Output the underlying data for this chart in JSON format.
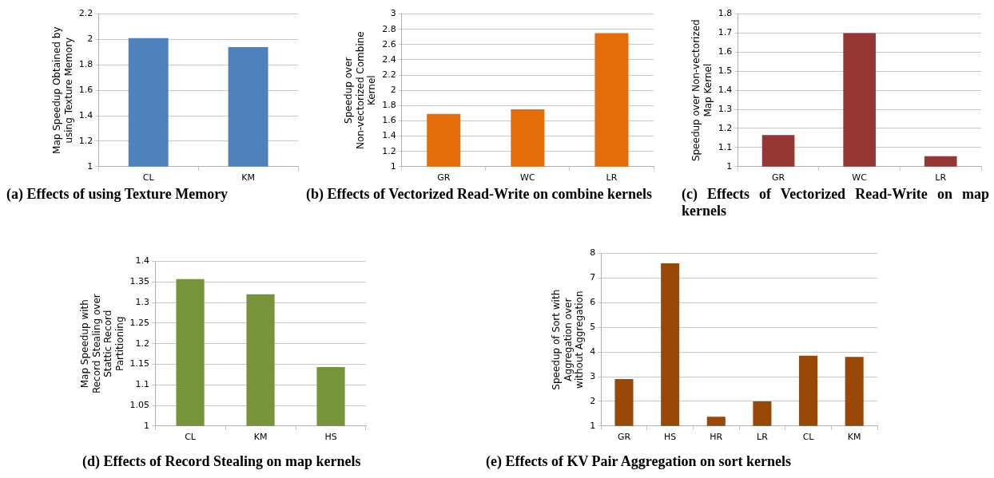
{
  "chart_data": [
    {
      "type": "bar",
      "title": "(a) Effects of using Texture Memory",
      "ylabel": "Map Speedup Obtained by using Texture Memory",
      "categories": [
        "CL",
        "KM"
      ],
      "values": [
        2.01,
        1.94
      ],
      "color": "#4f81bd",
      "ylim": [
        1,
        2.2
      ],
      "yticks": [
        1,
        1.2,
        1.4,
        1.6,
        1.8,
        2,
        2.2
      ],
      "grid": "y"
    },
    {
      "type": "bar",
      "title": "(b) Effects of Vectorized Read-Write on combine kernels",
      "ylabel": "Speedup over Non-vectorized Combine Kernel",
      "categories": [
        "GR",
        "WC",
        "LR"
      ],
      "values": [
        1.69,
        1.75,
        2.75
      ],
      "color": "#e46c0a",
      "ylim": [
        1,
        3
      ],
      "yticks": [
        1,
        1.2,
        1.4,
        1.6,
        1.8,
        2,
        2.2,
        2.4,
        2.6,
        2.8,
        3
      ],
      "grid": "y"
    },
    {
      "type": "bar",
      "title": "(c) Effects of Vectorized Read-Write on map kernels",
      "ylabel": "Speedup over Non-vectorized Map Kernel",
      "categories": [
        "GR",
        "WC",
        "LR"
      ],
      "values": [
        1.165,
        1.7,
        1.055
      ],
      "color": "#953735",
      "ylim": [
        1,
        1.8
      ],
      "yticks": [
        1,
        1.1,
        1.2,
        1.3,
        1.4,
        1.5,
        1.6,
        1.7,
        1.8
      ],
      "grid": "y"
    },
    {
      "type": "bar",
      "title": "(d) Effects of Record Stealing on map kernels",
      "ylabel": "Map Speedup with Record Stealing over Stattic Record Partitioning",
      "categories": [
        "CL",
        "KM",
        "HS"
      ],
      "values": [
        1.357,
        1.32,
        1.143
      ],
      "color": "#77933c",
      "ylim": [
        1,
        1.4
      ],
      "yticks": [
        1,
        1.05,
        1.1,
        1.15,
        1.2,
        1.25,
        1.3,
        1.35,
        1.4
      ],
      "grid": "y"
    },
    {
      "type": "bar",
      "title": "(e) Effects of KV Pair Aggregation on sort kernels",
      "ylabel": "Speedup of Sort with Aggregation over without Aggregation",
      "categories": [
        "GR",
        "HS",
        "HR",
        "LR",
        "CL",
        "KM"
      ],
      "values": [
        2.9,
        7.6,
        1.37,
        2.0,
        3.85,
        3.8
      ],
      "color": "#984807",
      "ylim": [
        1,
        8
      ],
      "yticks": [
        1,
        2,
        3,
        4,
        5,
        6,
        7,
        8
      ],
      "grid": "y"
    }
  ]
}
